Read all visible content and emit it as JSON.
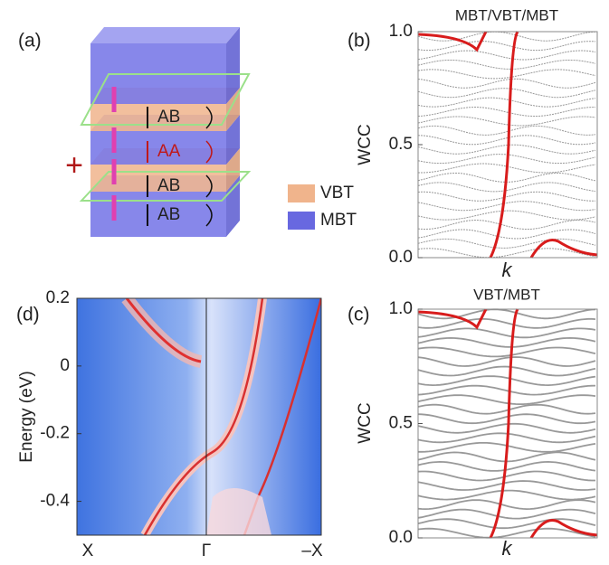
{
  "panels": {
    "a": {
      "label": "(a)",
      "plus": "+",
      "layers": [
        "AB",
        "AA",
        "AB",
        "AB"
      ],
      "legend": [
        "VBT",
        "MBT"
      ]
    },
    "b": {
      "label": "(b)",
      "title": "MBT/VBT/MBT",
      "ylabel": "WCC",
      "xlabel": "k",
      "ylim": [
        0,
        1
      ],
      "yticks": [
        {
          "value": 0,
          "label": "0.0"
        },
        0.5,
        {
          "value": 1,
          "label": "1.0"
        }
      ]
    },
    "c": {
      "label": "(c)",
      "title": "VBT/MBT",
      "ylabel": "WCC",
      "xlabel": "k",
      "ylim": [
        0,
        1
      ],
      "yticks": [
        {
          "value": 0,
          "label": "0.0"
        },
        0.5,
        {
          "value": 1,
          "label": "1.0"
        }
      ]
    },
    "d": {
      "label": "(d)",
      "ylabel": "Energy (eV)",
      "ylim": [
        -0.5,
        0.2
      ],
      "yticks": [
        0.2,
        0,
        -0.2,
        -0.4
      ],
      "xticks": [
        "X",
        "Γ",
        "–X"
      ]
    }
  }
}
